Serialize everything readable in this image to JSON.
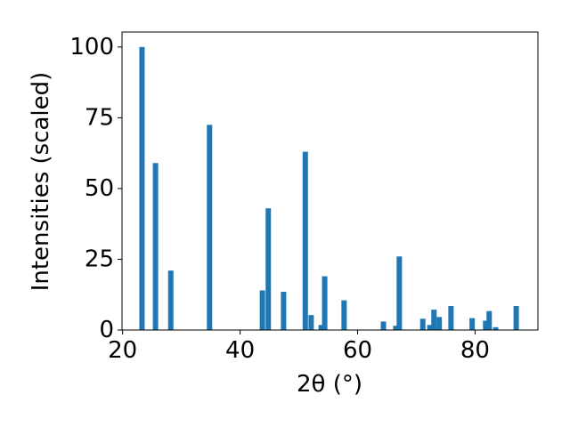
{
  "chart_data": {
    "type": "bar",
    "x": [
      23.3,
      25.6,
      28.2,
      34.8,
      43.8,
      44.8,
      47.4,
      51.1,
      52.1,
      53.8,
      54.4,
      57.7,
      64.4,
      66.5,
      67.1,
      71.1,
      72.3,
      73.0,
      73.9,
      75.9,
      79.5,
      81.8,
      82.4,
      83.5,
      87.0
    ],
    "values": [
      100,
      59,
      21,
      72.5,
      14,
      43,
      13.5,
      63,
      5.3,
      1.8,
      19,
      10.5,
      3,
      1.5,
      26,
      4,
      1.8,
      7.2,
      4.6,
      8.5,
      4.2,
      3.3,
      6.7,
      1,
      8.5
    ],
    "color": "#1f77b4",
    "xlabel": "2θ (°)",
    "ylabel": "Intensities (scaled)",
    "xlim": [
      19.9,
      90.7
    ],
    "xticks": [
      20,
      40,
      60,
      80
    ],
    "ylim": [
      0,
      105.3
    ],
    "yticks": [
      0,
      25,
      50,
      75,
      100
    ]
  }
}
